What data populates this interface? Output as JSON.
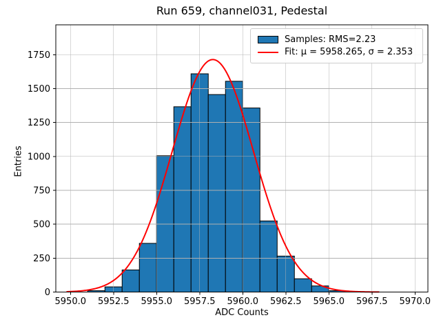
{
  "figure": {
    "title": "Run 659, channel031, Pedestal"
  },
  "chart_data": {
    "type": "histogram",
    "title": "Run 659, channel031, Pedestal",
    "xlabel": "ADC Counts",
    "ylabel": "Entries",
    "xlim": [
      5949.15,
      5970.75
    ],
    "ylim": [
      0,
      1970
    ],
    "xticks": [
      5950.0,
      5952.5,
      5955.0,
      5957.5,
      5960.0,
      5962.5,
      5965.0,
      5967.5,
      5970.0
    ],
    "xtick_decimals": 1,
    "yticks": [
      0,
      250,
      500,
      750,
      1000,
      1250,
      1500,
      1750
    ],
    "grid": true,
    "grid_color": "#b0b0b0",
    "background_color": "#ffffff",
    "series": [
      {
        "name": "Samples: RMS=2.23",
        "kind": "histogram",
        "rms": 2.23,
        "bin_width": 1,
        "bin_left_edges": [
          5951,
          5952,
          5953,
          5954,
          5955,
          5956,
          5957,
          5958,
          5959,
          5960,
          5961,
          5962,
          5963,
          5964,
          5965,
          5966
        ],
        "counts": [
          10,
          38,
          163,
          359,
          1005,
          1366,
          1609,
          1456,
          1554,
          1357,
          524,
          265,
          98,
          45,
          10,
          3
        ],
        "fill_color": "#1f77b4",
        "edge_color": "#000000"
      },
      {
        "name": "Fit: μ = 5958.265, σ = 2.353",
        "kind": "gaussian-line",
        "mu": 5958.265,
        "sigma": 2.353,
        "amplitude": 1714,
        "x_start": 5949.8,
        "x_end": 5967.95,
        "color": "#ff0000",
        "line_width": 2
      }
    ],
    "legend": {
      "position": "upper right",
      "entries": [
        {
          "label": "Samples: RMS=2.23",
          "swatch": "patch"
        },
        {
          "label": "Fit: μ = 5958.265, σ = 2.353",
          "swatch": "line"
        }
      ]
    }
  }
}
